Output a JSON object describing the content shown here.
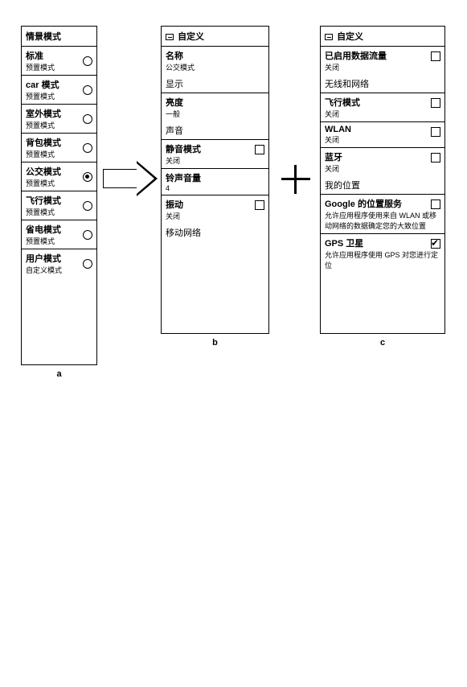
{
  "panelA": {
    "header": "情景模式",
    "items": [
      {
        "title": "标准",
        "sub": "预置模式"
      },
      {
        "title": "car 模式",
        "sub": "预置模式"
      },
      {
        "title": "室外模式",
        "sub": "预置模式"
      },
      {
        "title": "背包模式",
        "sub": "预置模式"
      },
      {
        "title": "公交模式",
        "sub": "预置模式"
      },
      {
        "title": "飞行模式",
        "sub": "预置模式"
      },
      {
        "title": "省电模式",
        "sub": "预置模式"
      },
      {
        "title": "用户模式",
        "sub": "自定义模式"
      }
    ],
    "selected": 4,
    "caption": "a"
  },
  "panelB": {
    "header": "自定义",
    "sections": [
      {
        "title": "名称",
        "sub": "公交模式",
        "cb": null
      },
      {
        "mid": "显示"
      },
      {
        "title": "亮度",
        "sub": "一般",
        "cb": null
      },
      {
        "mid": "声音"
      },
      {
        "title": "静音模式",
        "sub": "关闭",
        "cb": false
      },
      {
        "title": "铃声音量",
        "sub": "4",
        "cb": null
      },
      {
        "title": "振动",
        "sub": "关闭",
        "cb": false
      },
      {
        "mid": "移动网络"
      }
    ],
    "caption": "b"
  },
  "panelC": {
    "header": "自定义",
    "items": [
      {
        "title": "已启用数据流量",
        "sub": "关闭",
        "cb": false
      },
      {
        "mid": "无线和网络"
      },
      {
        "title": "飞行模式",
        "sub": "关闭",
        "cb": false
      },
      {
        "title": "WLAN",
        "sub": "关闭",
        "cb": false
      },
      {
        "title": "蓝牙",
        "sub": "关闭",
        "cb": false
      },
      {
        "mid": "我的位置"
      },
      {
        "title": "Google 的位置服务",
        "sub": "允许应用程序使用来自 WLAN 或移动网络的数据确定您的大致位置",
        "cb": false
      },
      {
        "title": "GPS 卫星",
        "sub": "允许应用程序使用 GPS 对您进行定位",
        "cb": true
      }
    ],
    "caption": "c"
  }
}
